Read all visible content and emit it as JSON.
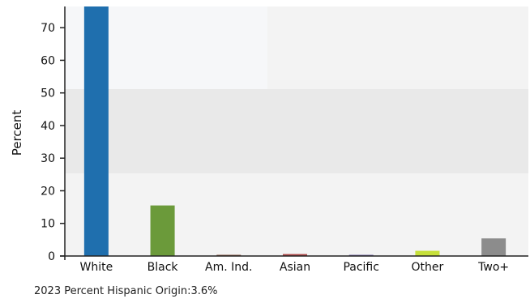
{
  "chart_data": {
    "type": "bar",
    "categories": [
      "White",
      "Black",
      "Am. Ind.",
      "Asian",
      "Pacific",
      "Other",
      "Two+"
    ],
    "values": [
      76.5,
      15.5,
      0.2,
      0.6,
      0.1,
      1.6,
      5.4
    ],
    "colors": [
      "#1f6fae",
      "#6b9a3a",
      "#8a5a44",
      "#b04a4a",
      "#7a6fa8",
      "#c6e03a",
      "#8c8c8c"
    ],
    "ylabel": "Percent",
    "xlabel": "",
    "ylim": [
      0,
      76.5
    ],
    "yticks": [
      "0",
      "10",
      "20",
      "30",
      "40",
      "50",
      "60",
      "70"
    ],
    "grid": false,
    "legend": "none",
    "footnote": "2023 Percent Hispanic Origin:3.6%"
  }
}
